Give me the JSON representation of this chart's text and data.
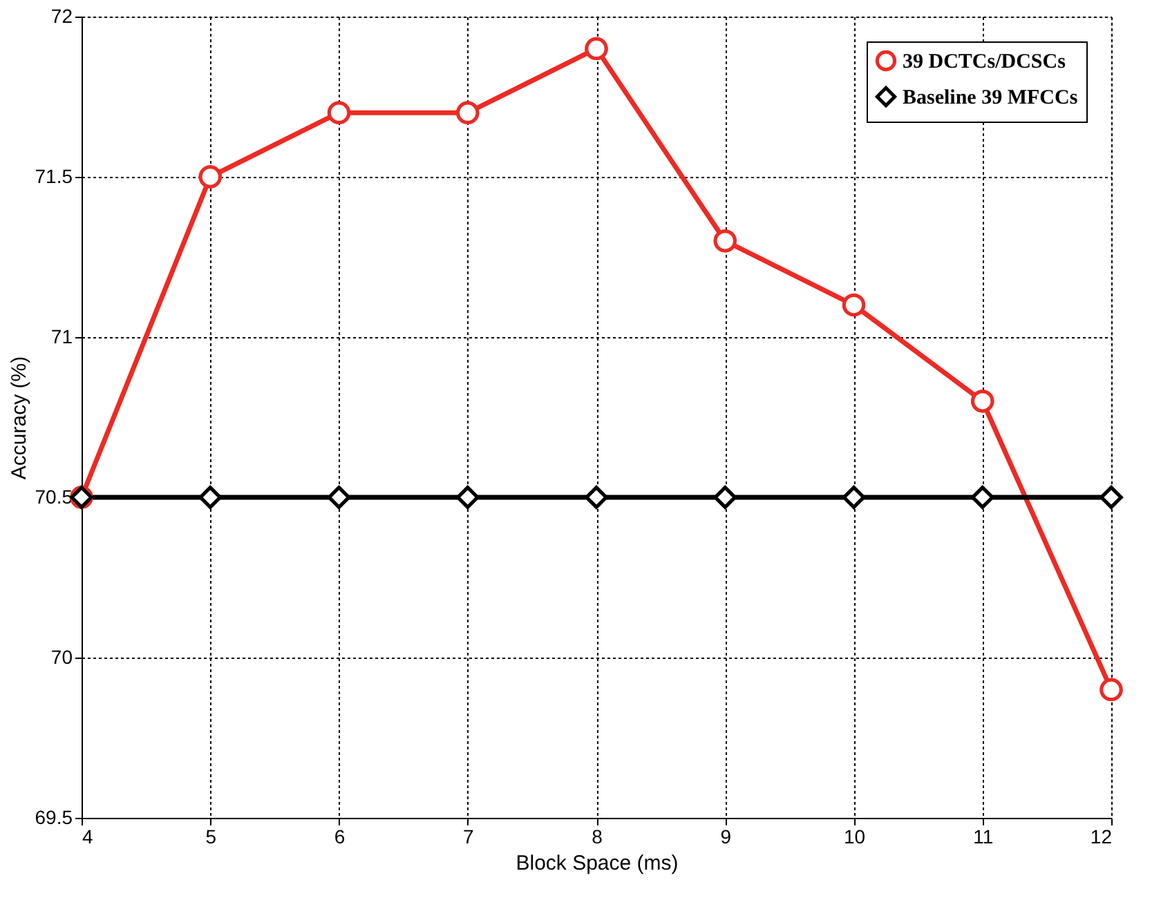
{
  "chart_data": {
    "type": "line",
    "xlabel": "Block Space (ms)",
    "ylabel": "Accuracy (%)",
    "x": [
      4,
      5,
      6,
      7,
      8,
      9,
      10,
      11,
      12
    ],
    "series": [
      {
        "name": "39 DCTCs/DCSCs",
        "color": "#ee2a24",
        "marker": "circle",
        "values": [
          70.5,
          71.5,
          71.7,
          71.7,
          71.9,
          71.3,
          71.1,
          70.8,
          69.9
        ]
      },
      {
        "name": "Baseline 39 MFCCs",
        "color": "#000000",
        "marker": "diamond",
        "values": [
          70.5,
          70.5,
          70.5,
          70.5,
          70.5,
          70.5,
          70.5,
          70.5,
          70.5
        ]
      }
    ],
    "xlim": [
      4,
      12
    ],
    "xticks": [
      4,
      5,
      6,
      7,
      8,
      9,
      10,
      11,
      12
    ],
    "ylim": [
      69.5,
      72
    ],
    "yticks": [
      69.5,
      70,
      70.5,
      71,
      71.5,
      72
    ],
    "grid": true,
    "legend": "top right",
    "line_style": "solid"
  }
}
